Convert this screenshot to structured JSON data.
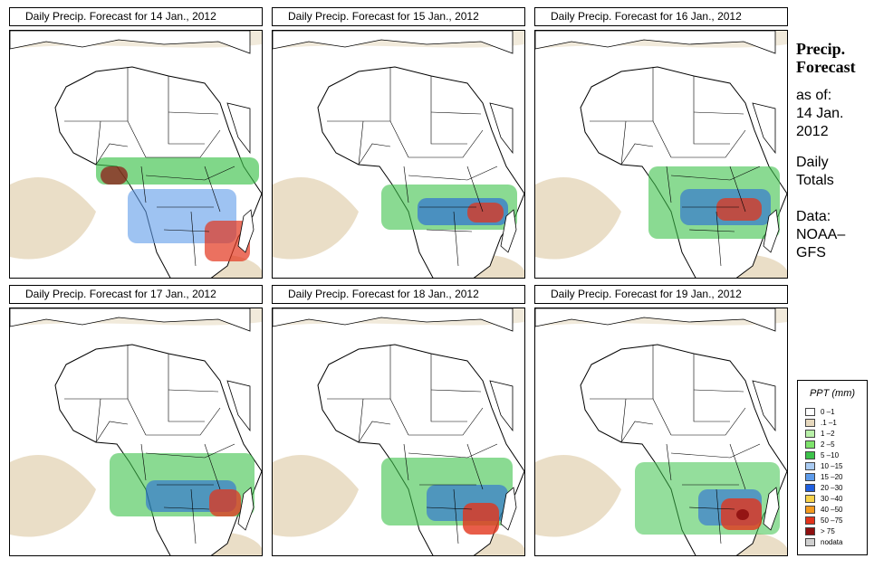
{
  "panels": [
    {
      "title": "Daily Precip. Forecast for  14 Jan., 2012",
      "day": 0
    },
    {
      "title": "Daily Precip. Forecast for  15 Jan., 2012",
      "day": 1
    },
    {
      "title": "Daily Precip. Forecast for  16 Jan., 2012",
      "day": 2
    },
    {
      "title": "Daily Precip. Forecast for  17 Jan., 2012",
      "day": 3
    },
    {
      "title": "Daily Precip. Forecast for  18 Jan., 2012",
      "day": 4
    },
    {
      "title": "Daily Precip. Forecast for  19 Jan., 2012",
      "day": 5
    }
  ],
  "side": {
    "title_line1": "Precip.",
    "title_line2": "Forecast",
    "asof_label": "as of:",
    "asof_date1": "14 Jan.",
    "asof_date2": "2012",
    "totals1": "Daily",
    "totals2": "Totals",
    "data1": "Data:",
    "data2": "NOAA–",
    "data3": "GFS"
  },
  "legend": {
    "title": "PPT (mm)",
    "items": [
      {
        "label": "0 –1",
        "color": "#ffffff"
      },
      {
        "label": ".1 –1",
        "color": "#e6d8bd"
      },
      {
        "label": "1 –2",
        "color": "#b8f0a8"
      },
      {
        "label": "2 –5",
        "color": "#7ee36c"
      },
      {
        "label": "5 –10",
        "color": "#3cc24a"
      },
      {
        "label": "10 –15",
        "color": "#a9cbf2"
      },
      {
        "label": "15 –20",
        "color": "#5d9bea"
      },
      {
        "label": "20 –30",
        "color": "#1f5fe0"
      },
      {
        "label": "30 –40",
        "color": "#f7d24a"
      },
      {
        "label": "40 –50",
        "color": "#f39a1f"
      },
      {
        "label": "50 –75",
        "color": "#e2341c"
      },
      {
        "label": "> 75",
        "color": "#8e0f0f"
      },
      {
        "label": "nodata",
        "color": "#cfcfcf"
      }
    ]
  },
  "colors": {
    "land": "#ffffff",
    "border": "#000000",
    "light_rain": "#e6d8bd"
  }
}
